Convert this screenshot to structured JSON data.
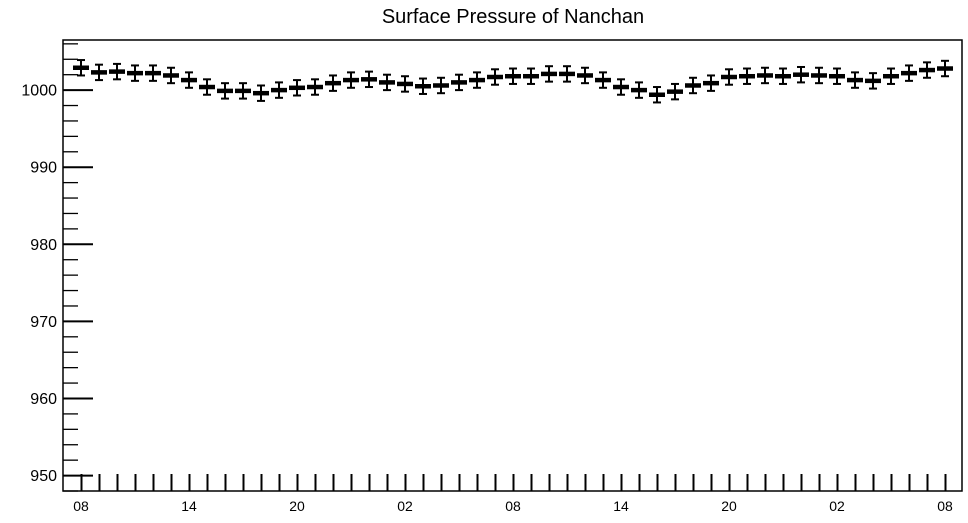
{
  "chart_data": {
    "type": "line",
    "title": "Surface Pressure of Nanchan",
    "xlabel": "",
    "ylabel": "",
    "ylim": [
      948,
      1006.5
    ],
    "y_ticks": [
      950,
      960,
      970,
      980,
      990,
      1000
    ],
    "y_tick_labels": [
      "950",
      "960",
      "970",
      "980",
      "990",
      "1000"
    ],
    "x_tick_labels": [
      "08",
      "14",
      "20",
      "02",
      "08",
      "14",
      "20",
      "02",
      "08"
    ],
    "x_tick_indices": [
      0,
      6,
      12,
      18,
      24,
      30,
      36,
      42,
      48
    ],
    "grid": false,
    "marker": "short-horizontal-bar",
    "series": [
      {
        "values": [
          1002.9,
          1002.3,
          1002.4,
          1002.2,
          1002.2,
          1001.9,
          1001.3,
          1000.4,
          999.9,
          999.9,
          999.6,
          1000.0,
          1000.3,
          1000.4,
          1000.9,
          1001.3,
          1001.4,
          1001.0,
          1000.8,
          1000.5,
          1000.6,
          1001.0,
          1001.3,
          1001.7,
          1001.8,
          1001.8,
          1002.1,
          1002.1,
          1001.9,
          1001.3,
          1000.4,
          1000.0,
          999.4,
          999.8,
          1000.6,
          1000.9,
          1001.7,
          1001.8,
          1001.9,
          1001.8,
          1002.0,
          1001.9,
          1001.8,
          1001.3,
          1001.2,
          1001.8,
          1002.2,
          1002.6,
          1002.8
        ],
        "error": 1.0
      }
    ]
  }
}
